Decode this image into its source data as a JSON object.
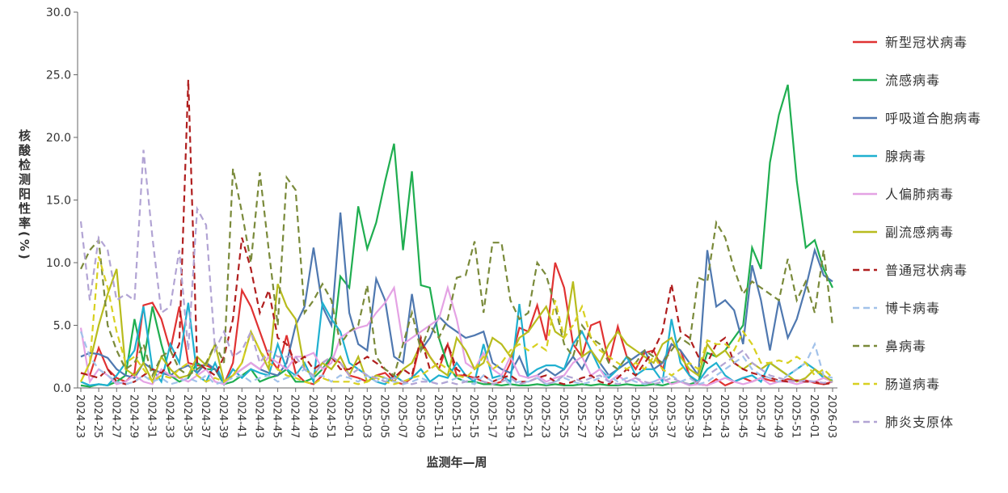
{
  "chart_data": {
    "type": "line",
    "x_label": "监测年—周",
    "y_label": "核酸检测阳性率(%)",
    "categories": [
      "2024-23",
      null,
      "2024-25",
      null,
      "2024-27",
      null,
      "2024-29",
      null,
      "2024-31",
      null,
      "2024-33",
      null,
      "2024-35",
      null,
      "2024-37",
      null,
      "2024-39",
      null,
      "2024-41",
      null,
      "2024-43",
      null,
      "2024-45",
      null,
      "2024-47",
      null,
      "2024-49",
      null,
      "2024-51",
      null,
      "2025-01",
      null,
      "2025-03",
      null,
      "2025-05",
      null,
      "2025-07",
      null,
      "2025-09",
      null,
      "2025-11",
      null,
      "2025-13",
      null,
      "2025-15",
      null,
      "2025-17",
      null,
      "2025-19",
      null,
      "2025-21",
      null,
      "2025-23",
      null,
      "2025-25",
      null,
      "2025-27",
      null,
      "2025-29",
      null,
      "2025-31",
      null,
      "2025-33",
      null,
      "2025-35",
      null,
      "2025-37",
      null,
      "2025-39",
      null,
      "2025-41",
      null,
      "2025-43",
      null,
      "2025-45",
      null,
      "2025-47",
      null,
      "2025-49",
      null,
      "2025-51",
      null,
      "2026-01",
      null,
      "2026-03"
    ],
    "ylim": [
      0,
      30
    ],
    "yticks": [
      {
        "value": 0,
        "label": "0.0"
      },
      {
        "value": 5,
        "label": "5.0"
      },
      {
        "value": 10,
        "label": "10.0"
      },
      {
        "value": 15,
        "label": "15.0"
      },
      {
        "value": 20,
        "label": "20.0"
      },
      {
        "value": 25,
        "label": "25.0"
      },
      {
        "value": 30,
        "label": "30.0"
      }
    ],
    "legend": "right",
    "series": [
      {
        "name": "新型冠状病毒",
        "color": "#e03232",
        "dashed": false,
        "values": [
          1.2,
          1.0,
          3.2,
          1.5,
          0.8,
          0.5,
          1.2,
          6.6,
          6.8,
          5.5,
          3.0,
          6.5,
          2.0,
          1.8,
          1.8,
          1.5,
          0.3,
          2.0,
          7.8,
          6.5,
          4.5,
          2.5,
          1.5,
          4.2,
          1.2,
          0.5,
          0.3,
          1.0,
          2.5,
          2.0,
          1.0,
          0.8,
          0.5,
          1.0,
          1.2,
          0.5,
          0.3,
          0.8,
          3.8,
          2.5,
          1.5,
          3.5,
          1.0,
          1.0,
          0.8,
          0.5,
          0.3,
          0.5,
          2.0,
          4.8,
          4.5,
          6.6,
          3.8,
          10.0,
          8.0,
          3.5,
          2.5,
          5.0,
          5.3,
          2.0,
          4.9,
          2.5,
          1.5,
          2.8,
          3.0,
          1.5,
          3.5,
          3.0,
          1.0,
          0.3,
          0.2,
          0.7,
          0.2,
          0.5,
          0.8,
          0.5,
          0.8,
          0.6,
          0.5,
          0.7,
          0.6,
          0.6,
          0.4,
          0.3,
          0.5
        ]
      },
      {
        "name": "流感病毒",
        "color": "#1fae50",
        "dashed": false,
        "values": [
          0.2,
          0.1,
          0.3,
          0.2,
          0.5,
          1.0,
          5.5,
          2.0,
          6.5,
          3.5,
          1.0,
          0.5,
          0.8,
          2.0,
          1.5,
          1.5,
          0.3,
          0.5,
          1.0,
          1.5,
          0.5,
          0.8,
          1.0,
          1.5,
          0.5,
          0.5,
          0.8,
          1.5,
          2.5,
          8.9,
          8.0,
          14.5,
          11.1,
          13.2,
          16.5,
          19.5,
          11.0,
          17.3,
          8.2,
          8.0,
          4.0,
          1.8,
          0.8,
          0.5,
          0.5,
          0.3,
          0.3,
          0.2,
          0.3,
          0.2,
          0.2,
          0.3,
          0.2,
          0.3,
          0.2,
          0.2,
          0.3,
          0.2,
          0.3,
          0.2,
          0.2,
          0.3,
          0.2,
          0.2,
          0.3,
          0.2,
          0.4,
          0.5,
          0.3,
          0.5,
          2.8,
          2.5,
          3.0,
          4.0,
          5.0,
          11.2,
          9.5,
          18.0,
          21.8,
          24.2,
          16.5,
          11.2,
          11.8,
          9.5,
          8.0
        ]
      },
      {
        "name": "呼吸道合胞病毒",
        "color": "#4f78b0",
        "dashed": false,
        "values": [
          2.5,
          2.8,
          2.7,
          2.4,
          1.5,
          1.0,
          0.8,
          2.0,
          1.5,
          1.2,
          1.0,
          1.5,
          1.8,
          1.2,
          2.0,
          1.5,
          0.5,
          1.0,
          1.5,
          2.0,
          1.5,
          1.2,
          1.0,
          2.0,
          5.0,
          6.5,
          11.2,
          6.5,
          5.0,
          14.0,
          6.0,
          3.5,
          3.0,
          8.7,
          7.0,
          2.5,
          2.0,
          7.5,
          3.0,
          4.0,
          5.7,
          5.0,
          4.5,
          4.0,
          4.2,
          4.5,
          2.0,
          1.5,
          1.2,
          2.5,
          0.8,
          1.0,
          1.5,
          1.0,
          1.5,
          2.5,
          1.5,
          3.0,
          2.0,
          1.0,
          1.5,
          2.0,
          2.5,
          3.0,
          1.5,
          2.0,
          3.5,
          3.0,
          2.0,
          1.0,
          11.0,
          6.5,
          7.0,
          6.2,
          3.5,
          9.8,
          7.0,
          3.0,
          7.0,
          4.0,
          5.5,
          8.0,
          11.0,
          9.0,
          8.5
        ]
      },
      {
        "name": "腺病毒",
        "color": "#1fb0d0",
        "dashed": false,
        "values": [
          0.5,
          0.2,
          0.3,
          0.2,
          1.0,
          2.0,
          3.0,
          6.5,
          1.5,
          0.5,
          3.5,
          2.0,
          6.8,
          1.0,
          0.5,
          2.0,
          0.3,
          1.5,
          0.8,
          1.5,
          1.2,
          1.0,
          3.5,
          1.5,
          1.0,
          2.0,
          0.5,
          6.8,
          5.5,
          4.5,
          2.0,
          1.5,
          1.0,
          0.5,
          0.3,
          1.0,
          0.5,
          0.8,
          1.5,
          0.5,
          1.0,
          0.8,
          2.0,
          1.0,
          0.5,
          3.5,
          0.8,
          1.0,
          0.5,
          6.7,
          1.0,
          1.5,
          1.8,
          1.8,
          1.5,
          3.5,
          4.5,
          3.0,
          1.5,
          0.8,
          1.5,
          2.5,
          1.0,
          1.5,
          1.5,
          0.5,
          5.5,
          2.0,
          1.0,
          0.5,
          1.5,
          2.0,
          1.0,
          0.5,
          0.8,
          1.0,
          0.5,
          2.0,
          1.5,
          1.0,
          1.5,
          2.0,
          1.5,
          0.8,
          0.6
        ]
      },
      {
        "name": "人偏肺病毒",
        "color": "#e4a2e4",
        "dashed": false,
        "values": [
          4.8,
          0.5,
          1.5,
          1.0,
          0.3,
          0.5,
          1.0,
          0.5,
          0.3,
          1.5,
          1.0,
          0.8,
          0.5,
          1.0,
          1.5,
          0.5,
          0.3,
          1.0,
          1.5,
          2.0,
          1.5,
          2.5,
          2.0,
          1.5,
          2.5,
          2.5,
          2.8,
          1.5,
          2.0,
          4.0,
          4.5,
          4.8,
          5.0,
          6.0,
          6.8,
          8.0,
          3.5,
          4.0,
          4.5,
          5.0,
          5.5,
          8.0,
          5.5,
          2.0,
          1.5,
          2.8,
          1.5,
          1.0,
          2.5,
          1.0,
          0.8,
          1.0,
          0.5,
          0.8,
          1.0,
          2.0,
          2.5,
          1.0,
          1.5,
          0.5,
          1.0,
          0.5,
          0.8,
          0.3,
          0.5,
          0.8,
          0.3,
          0.5,
          0.2,
          0.3,
          0.2,
          0.5,
          0.8,
          0.5,
          0.3,
          0.5,
          0.8,
          0.3,
          0.5,
          0.5,
          0.3,
          0.5,
          0.5,
          0.8,
          0.5
        ]
      },
      {
        "name": "副流感病毒",
        "color": "#b8bc1e",
        "dashed": false,
        "values": [
          0.5,
          2.0,
          5.0,
          7.5,
          9.5,
          1.5,
          1.0,
          2.0,
          0.5,
          2.5,
          1.5,
          0.8,
          1.0,
          2.5,
          1.8,
          3.5,
          0.5,
          1.0,
          2.0,
          4.5,
          3.0,
          1.5,
          8.3,
          6.5,
          5.5,
          1.5,
          1.0,
          2.0,
          1.5,
          2.5,
          1.0,
          2.5,
          0.5,
          1.0,
          0.8,
          0.5,
          1.5,
          2.0,
          3.5,
          2.5,
          1.5,
          1.0,
          4.0,
          3.0,
          1.5,
          2.0,
          4.0,
          3.5,
          2.5,
          4.0,
          4.5,
          5.5,
          6.5,
          4.5,
          4.0,
          8.5,
          2.5,
          3.0,
          2.0,
          3.5,
          4.5,
          3.5,
          3.0,
          2.5,
          2.0,
          3.5,
          4.0,
          2.5,
          1.5,
          1.0,
          3.5,
          2.5,
          3.0,
          2.0,
          1.5,
          2.0,
          1.5,
          2.0,
          1.5,
          1.0,
          0.5,
          0.8,
          1.5,
          1.0,
          0.5
        ]
      },
      {
        "name": "普通冠状病毒",
        "color": "#b01e1e",
        "dashed": true,
        "values": [
          1.2,
          1.0,
          0.8,
          1.5,
          0.5,
          0.3,
          0.5,
          1.0,
          1.5,
          1.2,
          2.0,
          3.5,
          24.6,
          2.0,
          1.5,
          1.0,
          2.5,
          5.5,
          12.0,
          9.5,
          6.0,
          7.8,
          4.0,
          3.5,
          2.0,
          2.5,
          1.5,
          2.0,
          2.5,
          1.5,
          1.5,
          2.0,
          2.5,
          2.0,
          1.5,
          0.8,
          1.5,
          1.0,
          4.0,
          1.5,
          2.0,
          3.5,
          1.5,
          1.0,
          0.8,
          1.0,
          0.5,
          0.8,
          1.0,
          0.5,
          0.5,
          0.8,
          1.0,
          0.5,
          0.3,
          0.5,
          0.8,
          1.0,
          0.5,
          0.3,
          0.8,
          1.5,
          1.0,
          2.0,
          3.0,
          4.5,
          8.3,
          4.5,
          4.0,
          2.5,
          2.0,
          3.5,
          4.0,
          2.0,
          1.5,
          1.2,
          1.0,
          0.8,
          0.6,
          0.5,
          0.6,
          0.5,
          0.5,
          0.3,
          0.4
        ]
      },
      {
        "name": "博卡病毒",
        "color": "#a2c2ea",
        "dashed": true,
        "values": [
          4.5,
          2.5,
          1.5,
          1.0,
          0.5,
          0.3,
          0.5,
          1.0,
          0.5,
          0.8,
          0.3,
          0.5,
          0.8,
          0.5,
          1.0,
          0.3,
          0.5,
          0.8,
          1.0,
          0.5,
          0.8,
          1.0,
          0.5,
          0.8,
          1.0,
          1.5,
          0.8,
          1.0,
          0.5,
          1.0,
          0.8,
          0.5,
          1.0,
          0.5,
          0.8,
          0.5,
          0.3,
          0.5,
          0.8,
          0.5,
          0.3,
          0.5,
          0.8,
          0.5,
          0.3,
          1.0,
          0.5,
          0.8,
          0.3,
          0.5,
          0.5,
          0.8,
          0.3,
          0.5,
          0.8,
          0.5,
          0.3,
          0.5,
          0.8,
          1.0,
          0.5,
          0.8,
          0.5,
          0.3,
          0.5,
          0.8,
          1.0,
          0.5,
          0.8,
          0.3,
          0.5,
          1.0,
          1.5,
          2.0,
          2.5,
          1.5,
          1.0,
          0.8,
          0.5,
          1.0,
          1.5,
          2.0,
          3.5,
          1.0,
          0.8
        ]
      },
      {
        "name": "鼻病毒",
        "color": "#7a8a3a",
        "dashed": true,
        "values": [
          9.5,
          11.0,
          11.8,
          5.0,
          3.0,
          1.5,
          2.0,
          3.5,
          1.0,
          2.5,
          3.0,
          1.5,
          1.0,
          1.5,
          2.0,
          3.5,
          2.0,
          17.5,
          14.0,
          10.0,
          17.2,
          11.0,
          5.0,
          16.8,
          15.8,
          6.0,
          7.0,
          8.3,
          7.0,
          3.5,
          4.5,
          5.0,
          8.2,
          2.5,
          1.5,
          1.0,
          3.5,
          6.0,
          3.0,
          5.0,
          4.0,
          5.5,
          8.8,
          9.0,
          11.7,
          6.0,
          11.6,
          11.6,
          7.0,
          5.5,
          6.0,
          10.0,
          9.0,
          6.5,
          3.5,
          2.5,
          5.0,
          4.0,
          3.5,
          2.0,
          1.5,
          2.5,
          2.0,
          3.0,
          2.5,
          2.0,
          3.0,
          4.0,
          3.5,
          8.8,
          8.5,
          13.2,
          12.0,
          9.5,
          7.5,
          8.5,
          8.0,
          7.5,
          7.0,
          10.3,
          7.0,
          8.5,
          6.0,
          11.0,
          5.0
        ]
      },
      {
        "name": "肠道病毒",
        "color": "#d8d020",
        "dashed": true,
        "values": [
          0.5,
          2.0,
          10.5,
          8.0,
          4.5,
          2.0,
          2.5,
          1.5,
          0.5,
          1.0,
          0.8,
          1.5,
          2.0,
          1.0,
          0.5,
          0.8,
          0.5,
          1.0,
          2.0,
          4.5,
          3.0,
          2.0,
          1.5,
          1.0,
          0.8,
          0.5,
          0.3,
          0.8,
          0.5,
          0.5,
          0.5,
          0.3,
          0.5,
          0.8,
          0.5,
          0.3,
          0.5,
          0.8,
          1.0,
          1.5,
          2.0,
          1.5,
          1.0,
          0.8,
          1.5,
          2.5,
          1.5,
          2.0,
          3.0,
          3.5,
          3.0,
          3.5,
          3.0,
          7.0,
          4.0,
          5.0,
          6.5,
          4.0,
          3.0,
          2.5,
          2.0,
          1.5,
          2.0,
          1.5,
          2.5,
          1.5,
          1.0,
          1.5,
          2.0,
          1.5,
          3.8,
          3.5,
          3.5,
          3.0,
          4.5,
          3.5,
          2.0,
          2.0,
          2.2,
          2.0,
          2.5,
          2.0,
          1.0,
          1.5,
          0.8
        ]
      },
      {
        "name": "肺炎支原体",
        "color": "#b2a4d4",
        "dashed": true,
        "values": [
          13.3,
          7.0,
          12.0,
          11.0,
          7.0,
          7.5,
          7.0,
          19.0,
          12.0,
          6.0,
          6.5,
          11.0,
          3.0,
          14.3,
          13.0,
          3.0,
          4.5,
          2.5,
          3.0,
          4.5,
          2.0,
          3.0,
          2.5,
          2.5,
          2.5,
          1.5,
          1.0,
          2.0,
          2.5,
          2.0,
          1.0,
          1.5,
          1.0,
          0.8,
          0.5,
          0.8,
          0.5,
          0.3,
          0.5,
          0.5,
          0.3,
          0.5,
          0.3,
          0.5,
          0.8,
          0.5,
          0.3,
          0.5,
          0.8,
          0.3,
          0.5,
          0.8,
          0.3,
          0.5,
          1.0,
          0.8,
          0.5,
          0.8,
          1.0,
          0.5,
          0.3,
          0.5,
          0.8,
          0.5,
          0.3,
          0.5,
          0.8,
          0.5,
          0.3,
          0.5,
          1.0,
          1.5,
          2.0,
          2.5,
          3.0,
          2.0,
          1.5,
          1.0,
          0.8,
          0.6,
          0.5,
          0.6,
          0.5,
          0.4,
          0.5
        ]
      }
    ]
  }
}
